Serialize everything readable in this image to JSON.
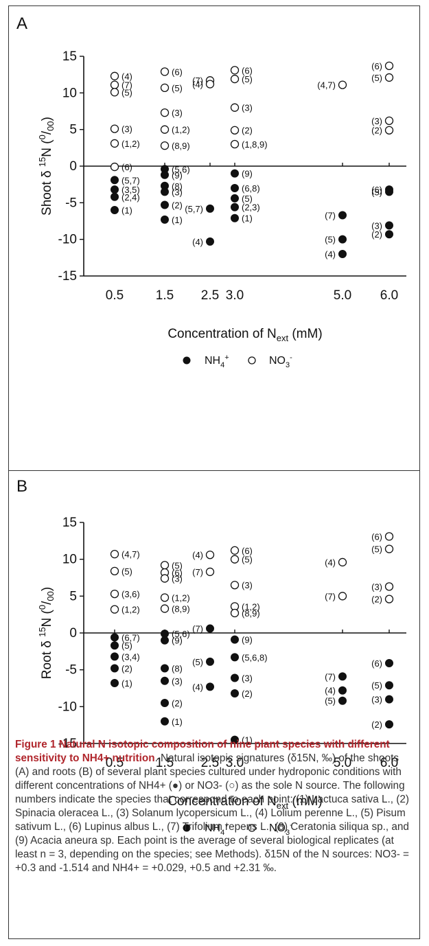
{
  "chart_data": [
    {
      "panel": "A",
      "type": "scatter",
      "ylabel": "Shoot δ 15N (0/00)",
      "xlabel": "Concentration of Next (mM)",
      "ylim": [
        -15,
        15
      ],
      "yticks": [
        "15",
        "10",
        "5",
        "0",
        "-5",
        "-10",
        "-15"
      ],
      "xticks": [
        "0.5",
        "1.5",
        "2.5",
        "3.0",
        "5.0",
        "6.0"
      ],
      "legend": [
        "NH4+",
        "NO3-"
      ],
      "series": [
        {
          "name": "NO3-",
          "marker": "open",
          "points": [
            {
              "x": 0.5,
              "y": 12.3,
              "label": "(4)"
            },
            {
              "x": 0.5,
              "y": 11.1,
              "label": "(7)"
            },
            {
              "x": 0.5,
              "y": 10.1,
              "label": "(5)"
            },
            {
              "x": 0.5,
              "y": 5.1,
              "label": "(3)"
            },
            {
              "x": 0.5,
              "y": 3.1,
              "label": "(1,2)"
            },
            {
              "x": 0.5,
              "y": -0.1,
              "label": "(6)"
            },
            {
              "x": 1.5,
              "y": 12.9,
              "label": "(6)"
            },
            {
              "x": 1.5,
              "y": 10.7,
              "label": "(5)"
            },
            {
              "x": 1.5,
              "y": 7.3,
              "label": "(3)"
            },
            {
              "x": 1.5,
              "y": 5.0,
              "label": "(1,2)"
            },
            {
              "x": 1.5,
              "y": 2.8,
              "label": "(8,9)"
            },
            {
              "x": 2.5,
              "y": 11.7,
              "label": "(7)"
            },
            {
              "x": 2.5,
              "y": 11.2,
              "label": "(4)"
            },
            {
              "x": 3.0,
              "y": 13.1,
              "label": "(6)"
            },
            {
              "x": 3.0,
              "y": 11.9,
              "label": "(5)"
            },
            {
              "x": 3.0,
              "y": 8.0,
              "label": "(3)"
            },
            {
              "x": 3.0,
              "y": 4.9,
              "label": "(2)"
            },
            {
              "x": 3.0,
              "y": 3.0,
              "label": "(1,8,9)"
            },
            {
              "x": 5.0,
              "y": 11.1,
              "label": "(4,7)"
            },
            {
              "x": 6.0,
              "y": 13.7,
              "label": "(6)"
            },
            {
              "x": 6.0,
              "y": 12.1,
              "label": "(5)"
            },
            {
              "x": 6.0,
              "y": 6.2,
              "label": "(3)"
            },
            {
              "x": 6.0,
              "y": 4.9,
              "label": "(2)"
            }
          ]
        },
        {
          "name": "NH4+",
          "marker": "filled",
          "points": [
            {
              "x": 0.5,
              "y": -1.9,
              "label": "(5,7)"
            },
            {
              "x": 0.5,
              "y": -3.2,
              "label": "(3,5)"
            },
            {
              "x": 0.5,
              "y": -4.2,
              "label": "(2,4)"
            },
            {
              "x": 0.5,
              "y": -6.0,
              "label": "(1)"
            },
            {
              "x": 1.5,
              "y": -0.4,
              "label": "(5,6)"
            },
            {
              "x": 1.5,
              "y": -1.2,
              "label": "(9)"
            },
            {
              "x": 1.5,
              "y": -2.7,
              "label": "(8)"
            },
            {
              "x": 1.5,
              "y": -3.5,
              "label": "(3)"
            },
            {
              "x": 1.5,
              "y": -5.3,
              "label": "(2)"
            },
            {
              "x": 1.5,
              "y": -7.3,
              "label": "(1)"
            },
            {
              "x": 2.5,
              "y": -5.8,
              "label": "(5,7)"
            },
            {
              "x": 2.5,
              "y": -10.3,
              "label": "(4)"
            },
            {
              "x": 3.0,
              "y": -1.0,
              "label": "(9)"
            },
            {
              "x": 3.0,
              "y": -3.0,
              "label": "(6,8)"
            },
            {
              "x": 3.0,
              "y": -4.4,
              "label": "(5)"
            },
            {
              "x": 3.0,
              "y": -5.6,
              "label": "(2,3)"
            },
            {
              "x": 3.0,
              "y": -7.1,
              "label": "(1)"
            },
            {
              "x": 5.0,
              "y": -6.7,
              "label": "(7)"
            },
            {
              "x": 5.0,
              "y": -10.0,
              "label": "(5)"
            },
            {
              "x": 5.0,
              "y": -12.0,
              "label": "(4)"
            },
            {
              "x": 6.0,
              "y": -3.2,
              "label": "(6)"
            },
            {
              "x": 6.0,
              "y": -3.5,
              "label": "(5)"
            },
            {
              "x": 6.0,
              "y": -8.1,
              "label": "(3)"
            },
            {
              "x": 6.0,
              "y": -9.3,
              "label": "(2)"
            }
          ]
        }
      ]
    },
    {
      "panel": "B",
      "type": "scatter",
      "ylabel": "Root δ 15N (0/00)",
      "xlabel": "Concentration of Next (mM)",
      "ylim": [
        -15,
        15
      ],
      "yticks": [
        "15",
        "10",
        "5",
        "0",
        "-5",
        "-10",
        "-15"
      ],
      "xticks": [
        "0.5",
        "1.5",
        "2.5",
        "3.0",
        "5.0",
        "6.0"
      ],
      "legend": [
        "NH4+",
        "NO3-"
      ],
      "series": [
        {
          "name": "NO3-",
          "marker": "open",
          "points": [
            {
              "x": 0.5,
              "y": 10.7,
              "label": "(4,7)"
            },
            {
              "x": 0.5,
              "y": 8.4,
              "label": "(5)"
            },
            {
              "x": 0.5,
              "y": 5.3,
              "label": "(3,6)"
            },
            {
              "x": 0.5,
              "y": 3.2,
              "label": "(1,2)"
            },
            {
              "x": 1.5,
              "y": 9.2,
              "label": "(5)"
            },
            {
              "x": 1.5,
              "y": 8.2,
              "label": "(6)"
            },
            {
              "x": 1.5,
              "y": 7.4,
              "label": "(3)"
            },
            {
              "x": 1.5,
              "y": 4.8,
              "label": "(1,2)"
            },
            {
              "x": 1.5,
              "y": 3.3,
              "label": "(8,9)"
            },
            {
              "x": 2.5,
              "y": 10.6,
              "label": "(4)"
            },
            {
              "x": 2.5,
              "y": 8.3,
              "label": "(7)"
            },
            {
              "x": 3.0,
              "y": 11.2,
              "label": "(6)"
            },
            {
              "x": 3.0,
              "y": 10.0,
              "label": "(5)"
            },
            {
              "x": 3.0,
              "y": 6.5,
              "label": "(3)"
            },
            {
              "x": 3.0,
              "y": 3.6,
              "label": "(1,2)"
            },
            {
              "x": 3.0,
              "y": 2.7,
              "label": "(8,9)"
            },
            {
              "x": 5.0,
              "y": 9.6,
              "label": "(4)"
            },
            {
              "x": 5.0,
              "y": 5.0,
              "label": "(7)"
            },
            {
              "x": 6.0,
              "y": 13.1,
              "label": "(6)"
            },
            {
              "x": 6.0,
              "y": 11.4,
              "label": "(5)"
            },
            {
              "x": 6.0,
              "y": 6.3,
              "label": "(3)"
            },
            {
              "x": 6.0,
              "y": 4.6,
              "label": "(2)"
            }
          ]
        },
        {
          "name": "NH4+",
          "marker": "filled",
          "points": [
            {
              "x": 0.5,
              "y": -0.6,
              "label": "(6,7)"
            },
            {
              "x": 0.5,
              "y": -1.7,
              "label": "(5)"
            },
            {
              "x": 0.5,
              "y": -3.2,
              "label": "(3,4)"
            },
            {
              "x": 0.5,
              "y": -4.8,
              "label": "(2)"
            },
            {
              "x": 0.5,
              "y": -6.8,
              "label": "(1)"
            },
            {
              "x": 1.5,
              "y": -0.1,
              "label": "(5,6)"
            },
            {
              "x": 1.5,
              "y": -1.0,
              "label": "(9)"
            },
            {
              "x": 1.5,
              "y": -4.8,
              "label": "(8)"
            },
            {
              "x": 1.5,
              "y": -6.5,
              "label": "(3)"
            },
            {
              "x": 1.5,
              "y": -9.5,
              "label": "(2)"
            },
            {
              "x": 1.5,
              "y": -12.0,
              "label": "(1)"
            },
            {
              "x": 2.5,
              "y": 0.6,
              "label": "(7)"
            },
            {
              "x": 2.5,
              "y": -3.9,
              "label": "(5)"
            },
            {
              "x": 2.5,
              "y": -7.3,
              "label": "(4)"
            },
            {
              "x": 3.0,
              "y": -0.9,
              "label": "(9)"
            },
            {
              "x": 3.0,
              "y": -3.3,
              "label": "(5,6,8)"
            },
            {
              "x": 3.0,
              "y": -6.1,
              "label": "(3)"
            },
            {
              "x": 3.0,
              "y": -8.2,
              "label": "(2)"
            },
            {
              "x": 3.0,
              "y": -14.5,
              "label": "(1)"
            },
            {
              "x": 5.0,
              "y": -5.9,
              "label": "(7)"
            },
            {
              "x": 5.0,
              "y": -7.8,
              "label": "(4)"
            },
            {
              "x": 5.0,
              "y": -9.2,
              "label": "(5)"
            },
            {
              "x": 6.0,
              "y": -4.1,
              "label": "(6)"
            },
            {
              "x": 6.0,
              "y": -7.1,
              "label": "(5)"
            },
            {
              "x": 6.0,
              "y": -9.0,
              "label": "(3)"
            },
            {
              "x": 6.0,
              "y": -12.4,
              "label": "(2)"
            }
          ]
        }
      ]
    }
  ],
  "caption": {
    "title": "Figure 1 Natural N isotopic composition of nine plant species with different sensitivity to NH4+ nutrition",
    "body": ". Natural isotopic signatures (δ15N, ‰) of the shoots (A) and roots (B) of several plant species cultured under hydroponic conditions with different concentrations of NH4+ (●) or NO3- (○) as the sole N source. The following numbers indicate the species that correspond to each point: (1) Lactuca sativa L., (2) Spinacia oleracea L., (3) Solanum lycopersicum L., (4) Lolium perenne L., (5) Pisum sativum L., (6) Lupinus albus L., (7) Trifolium repens L., (8) Ceratonia siliqua sp., and (9) Acacia aneura sp. Each point is the average of several biological replicates (at least n = 3, depending on the species; see Methods). δ15N of the N sources: NO3- = +0.3 and -1.514 and NH4+ = +0.029, +0.5 and +2.31 ‰."
  }
}
